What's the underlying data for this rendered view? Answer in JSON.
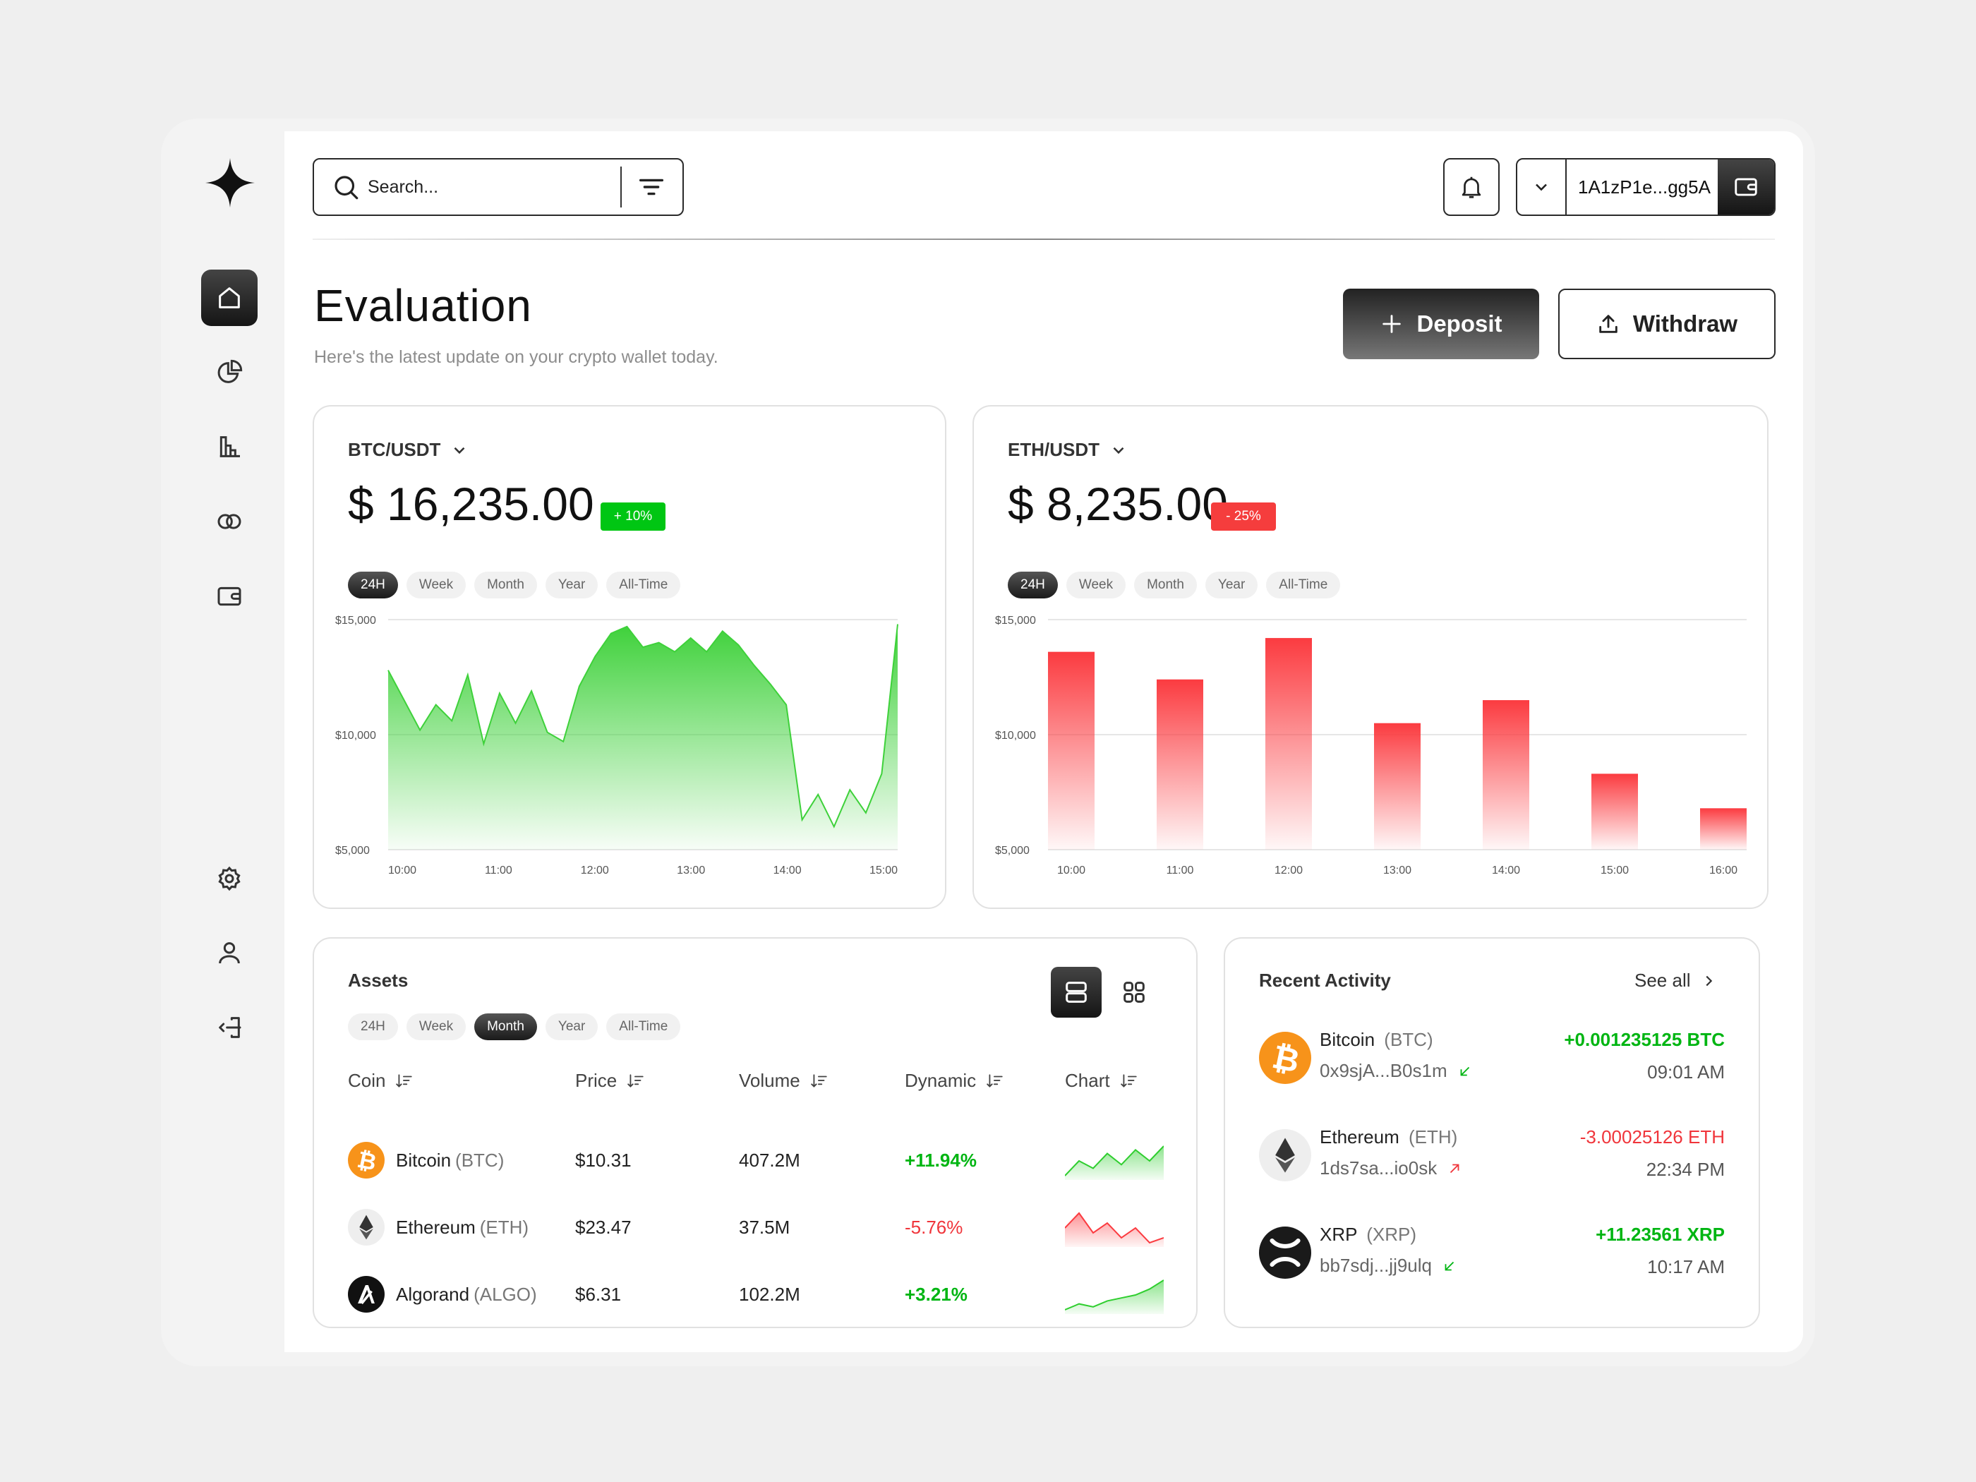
{
  "topbar": {
    "search_placeholder": "Search...",
    "wallet_address": "1A1zP1e...gg5A"
  },
  "header": {
    "title": "Evaluation",
    "subtitle": "Here's the latest update on your crypto wallet today.",
    "deposit_label": "Deposit",
    "withdraw_label": "Withdraw"
  },
  "btc_card": {
    "pair": "BTC/USDT",
    "price": "$ 16,235.00",
    "change": "+ 10%",
    "tabs": [
      "24H",
      "Week",
      "Month",
      "Year",
      "All-Time"
    ],
    "active_tab": "24H"
  },
  "eth_card": {
    "pair": "ETH/USDT",
    "price": "$ 8,235.00",
    "change": "- 25%",
    "tabs": [
      "24H",
      "Week",
      "Month",
      "Year",
      "All-Time"
    ],
    "active_tab": "24H"
  },
  "chart_data": [
    {
      "type": "area",
      "series_color": "#3ed13a",
      "x_ticks": [
        "10:00",
        "11:00",
        "12:00",
        "13:00",
        "14:00",
        "15:00"
      ],
      "y_ticks": [
        "$15,000",
        "$10,000",
        "$5,000"
      ],
      "ylim": [
        5000,
        15000
      ],
      "x": [
        "09:50",
        "10:00",
        "10:10",
        "10:20",
        "10:30",
        "10:40",
        "10:50",
        "11:00",
        "11:10",
        "11:20",
        "11:30",
        "11:40",
        "11:50",
        "12:00",
        "12:10",
        "12:20",
        "12:30",
        "12:40",
        "12:50",
        "13:00",
        "13:10",
        "13:20",
        "13:30",
        "13:40",
        "13:50",
        "14:00",
        "14:10",
        "14:20",
        "14:30",
        "14:40",
        "14:50",
        "15:00",
        "15:10"
      ],
      "values": [
        12800,
        11500,
        10200,
        11300,
        10600,
        12600,
        9600,
        11800,
        10500,
        11900,
        10100,
        9700,
        12100,
        13400,
        14400,
        14700,
        13800,
        14000,
        13600,
        14200,
        13600,
        14500,
        13900,
        13000,
        12200,
        11300,
        6300,
        7400,
        6000,
        7600,
        6600,
        8300,
        14800
      ],
      "grid": true
    },
    {
      "type": "bar",
      "series_color": "#fb3b40",
      "categories": [
        "10:00",
        "11:00",
        "12:00",
        "13:00",
        "14:00",
        "15:00",
        "16:00"
      ],
      "values": [
        13600,
        12400,
        14200,
        10500,
        11500,
        8300,
        6800
      ],
      "y_ticks": [
        "$15,000",
        "$10,000",
        "$5,000"
      ],
      "ylim": [
        5000,
        15000
      ],
      "grid": true
    }
  ],
  "assets": {
    "title": "Assets",
    "tabs": [
      "24H",
      "Week",
      "Month",
      "Year",
      "All-Time"
    ],
    "active_tab": "Month",
    "columns": [
      "Coin",
      "Price",
      "Volume",
      "Dynamic",
      "Chart"
    ],
    "rows": [
      {
        "name": "Bitcoin",
        "symbol": "(BTC)",
        "icon": "bitcoin-icon",
        "price": "$10.31",
        "volume": "407.2M",
        "dynamic": "+11.94%",
        "trend": "up",
        "spark": [
          3,
          7,
          5,
          9,
          6,
          10,
          7,
          11
        ]
      },
      {
        "name": "Ethereum",
        "symbol": "(ETH)",
        "icon": "ethereum-icon",
        "price": "$23.47",
        "volume": "37.5M",
        "dynamic": "-5.76%",
        "trend": "down",
        "spark": [
          8,
          11,
          7,
          9,
          6,
          8,
          5,
          6
        ]
      },
      {
        "name": "Algorand",
        "symbol": "(ALGO)",
        "icon": "algorand-icon",
        "price": "$6.31",
        "volume": "102.2M",
        "dynamic": "+3.21%",
        "trend": "up",
        "spark": [
          1,
          3,
          2,
          4,
          5,
          6,
          8,
          11
        ]
      }
    ]
  },
  "activity": {
    "title": "Recent Activity",
    "see_all": "See all",
    "items": [
      {
        "name": "Bitcoin",
        "symbol": "(BTC)",
        "icon": "bitcoin-icon",
        "address": "0x9sjA...B0s1m",
        "direction": "in",
        "amount": "+0.001235125 BTC",
        "time": "09:01 AM",
        "positive": true
      },
      {
        "name": "Ethereum",
        "symbol": "(ETH)",
        "icon": "ethereum-icon",
        "address": "1ds7sa...io0sk",
        "direction": "out",
        "amount": "-3.00025126 ETH",
        "time": "22:34 PM",
        "positive": false
      },
      {
        "name": "XRP",
        "symbol": "(XRP)",
        "icon": "xrp-icon",
        "address": "bb7sdj...jj9ulq",
        "direction": "in",
        "amount": "+11.23561 XRP",
        "time": "10:17 AM",
        "positive": true
      }
    ]
  },
  "colors": {
    "positive": "#00b512",
    "negative": "#f0353b",
    "bitcoin": "#f7931a"
  }
}
